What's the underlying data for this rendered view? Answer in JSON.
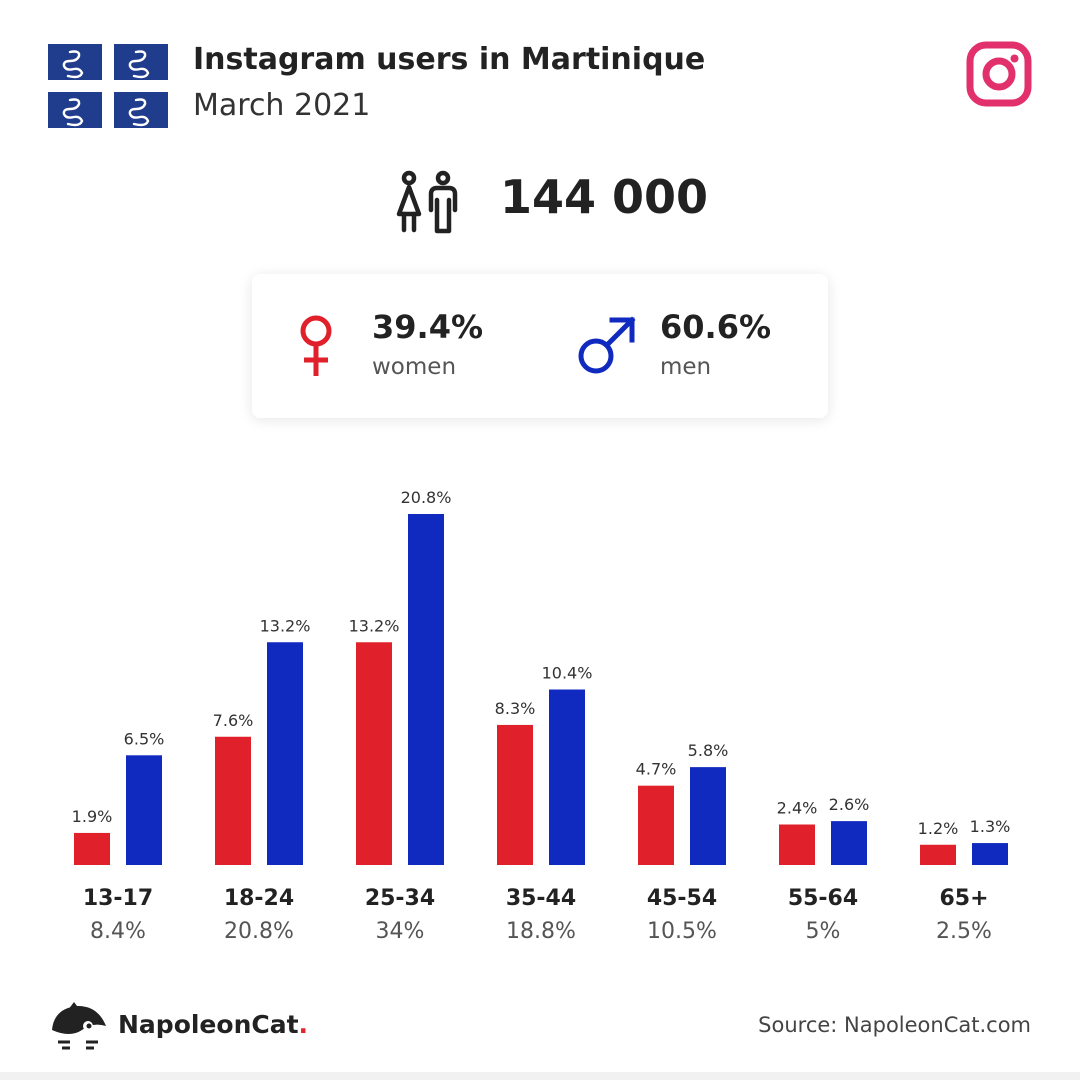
{
  "header": {
    "title": "Instagram users in Martinique",
    "subtitle": "March 2021",
    "flag_icon": "martinique-flag-icon",
    "brand_icon": "instagram-icon"
  },
  "total": {
    "value": "144 000",
    "icon": "people-icon"
  },
  "gender": {
    "women": {
      "percent": "39.4%",
      "label": "women",
      "icon": "female-icon",
      "color": "#e0202a"
    },
    "men": {
      "percent": "60.6%",
      "label": "men",
      "icon": "male-icon",
      "color": "#1029bf"
    }
  },
  "chart_data": {
    "type": "bar",
    "categories": [
      "13-17",
      "18-24",
      "25-34",
      "35-44",
      "45-54",
      "55-64",
      "65+"
    ],
    "category_totals": [
      "8.4%",
      "20.8%",
      "34%",
      "18.8%",
      "10.5%",
      "5%",
      "2.5%"
    ],
    "series": [
      {
        "values": [
          1.9,
          7.6,
          13.2,
          8.3,
          4.7,
          2.4,
          1.2
        ],
        "labels": [
          "1.9%",
          "7.6%",
          "13.2%",
          "8.3%",
          "4.7%",
          "2.4%",
          "1.2%"
        ],
        "color": "#e0202a"
      },
      {
        "values": [
          6.5,
          13.2,
          20.8,
          10.4,
          5.8,
          2.6,
          1.3
        ],
        "labels": [
          "6.5%",
          "13.2%",
          "20.8%",
          "10.4%",
          "5.8%",
          "2.6%",
          "1.3%"
        ],
        "color": "#1029bf"
      }
    ],
    "ylim": [
      0,
      20.8
    ],
    "grid": false,
    "legend": "none"
  },
  "footer": {
    "brand_name": "NapoleonCat",
    "brand_dot": ".",
    "logo_icon": "napoleoncat-logo-icon",
    "source": "Source: NapoleonCat.com"
  }
}
